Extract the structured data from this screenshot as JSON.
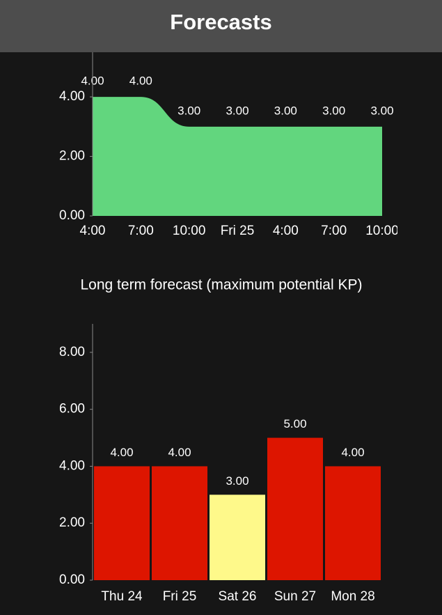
{
  "header": {
    "title": "Forecasts"
  },
  "charts": [
    {
      "chart_data": {
        "type": "area",
        "categories": [
          "4:00",
          "7:00",
          "10:00",
          "Fri 25",
          "4:00",
          "7:00",
          "10:00"
        ],
        "values": [
          4,
          4,
          3,
          3,
          3,
          3,
          3
        ],
        "value_labels": [
          "4.00",
          "4.00",
          "3.00",
          "3.00",
          "3.00",
          "3.00",
          "3.00"
        ],
        "color": "#62d67e",
        "ylim": [
          0,
          5.5
        ],
        "yticks": [
          {
            "value": 0,
            "label": "0.00"
          },
          {
            "value": 2,
            "label": "2.00"
          },
          {
            "value": 4,
            "label": "4.00"
          }
        ]
      }
    },
    {
      "chart_data": {
        "type": "bar",
        "title": "Long term forecast (maximum potential KP)",
        "categories": [
          "Thu 24",
          "Fri 25",
          "Sat 26",
          "Sun 27",
          "Mon 28"
        ],
        "values": [
          4,
          4,
          3,
          5,
          4
        ],
        "value_labels": [
          "4.00",
          "4.00",
          "3.00",
          "5.00",
          "4.00"
        ],
        "colors": [
          "#dd1500",
          "#dd1500",
          "#fef98a",
          "#dd1500",
          "#dd1500"
        ],
        "ylim": [
          0,
          9
        ],
        "yticks": [
          {
            "value": 0,
            "label": "0.00"
          },
          {
            "value": 2,
            "label": "2.00"
          },
          {
            "value": 4,
            "label": "4.00"
          },
          {
            "value": 6,
            "label": "6.00"
          },
          {
            "value": 8,
            "label": "8.00"
          }
        ]
      }
    }
  ]
}
